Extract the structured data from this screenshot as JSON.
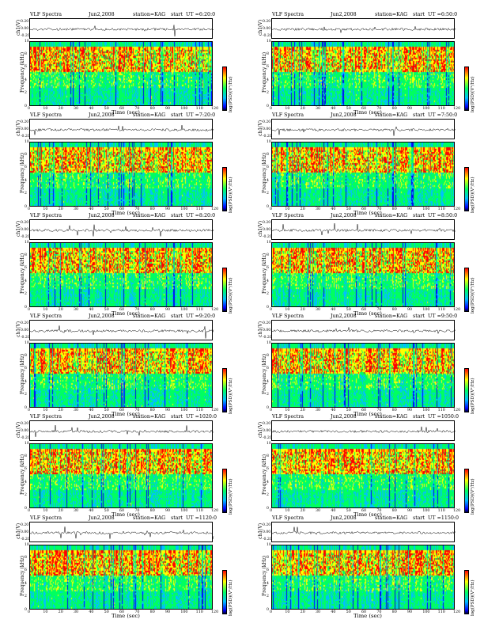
{
  "chart_data": [
    {
      "type": "heatmap",
      "header": {
        "title": "VLF Spectra",
        "date": "Jun2,2008",
        "station": "station=KAG",
        "start": "start  UT =6:20:0"
      },
      "waveform": {
        "ylabel": "ch1(V)",
        "yticks": [
          "0.20",
          "0.00",
          "-0.20"
        ],
        "ylim": [
          -0.2,
          0.2
        ]
      },
      "spectrogram": {
        "ylabel": "Frequency (kHz)",
        "yticks": [
          "10",
          "8",
          "6",
          "4",
          "2",
          "0"
        ],
        "ylim": [
          0,
          10
        ],
        "xlabel": "Time (sec)",
        "xticks": [
          "0",
          "10",
          "20",
          "30",
          "40",
          "50",
          "60",
          "70",
          "80",
          "90",
          "100",
          "110",
          "120"
        ],
        "xlim": [
          0,
          120
        ]
      },
      "colorbar": {
        "label": "log(PSD)(V²/Hz)"
      }
    },
    {
      "type": "heatmap",
      "header": {
        "title": "VLF Spectra",
        "date": "Jun2,2008",
        "station": "station=KAG",
        "start": "start  UT =6:50:0"
      },
      "waveform": {
        "ylabel": "ch1(V)",
        "yticks": [
          "0.20",
          "0.00",
          "-0.20"
        ],
        "ylim": [
          -0.2,
          0.2
        ]
      },
      "spectrogram": {
        "ylabel": "Frequency (kHz)",
        "yticks": [
          "10",
          "8",
          "6",
          "4",
          "2",
          "0"
        ],
        "ylim": [
          0,
          10
        ],
        "xlabel": "Time (sec)",
        "xticks": [
          "0",
          "10",
          "20",
          "30",
          "40",
          "50",
          "60",
          "70",
          "80",
          "90",
          "100",
          "110",
          "120"
        ],
        "xlim": [
          0,
          120
        ]
      },
      "colorbar": {
        "label": "log(PSD)(V²/Hz)"
      }
    },
    {
      "type": "heatmap",
      "header": {
        "title": "VLF Spectra",
        "date": "Jun2,2008",
        "station": "station=KAG",
        "start": "start  UT =7:20:0"
      },
      "waveform": {
        "ylabel": "ch1(V)",
        "yticks": [
          "0.20",
          "0.00",
          "-0.20"
        ],
        "ylim": [
          -0.2,
          0.2
        ]
      },
      "spectrogram": {
        "ylabel": "Frequency (kHz)",
        "yticks": [
          "10",
          "8",
          "6",
          "4",
          "2",
          "0"
        ],
        "ylim": [
          0,
          10
        ],
        "xlabel": "Time (sec)",
        "xticks": [
          "0",
          "10",
          "20",
          "30",
          "40",
          "50",
          "60",
          "70",
          "80",
          "90",
          "100",
          "110",
          "120"
        ],
        "xlim": [
          0,
          120
        ]
      },
      "colorbar": {
        "label": "log(PSD)(V²/Hz)"
      }
    },
    {
      "type": "heatmap",
      "header": {
        "title": "VLF Spectra",
        "date": "Jun2,2008",
        "station": "station=KAG",
        "start": "start  UT =7:50:0"
      },
      "waveform": {
        "ylabel": "ch1(V)",
        "yticks": [
          "0.20",
          "0.00",
          "-0.20"
        ],
        "ylim": [
          -0.2,
          0.2
        ]
      },
      "spectrogram": {
        "ylabel": "Frequency (kHz)",
        "yticks": [
          "10",
          "8",
          "6",
          "4",
          "2",
          "0"
        ],
        "ylim": [
          0,
          10
        ],
        "xlabel": "Time (sec)",
        "xticks": [
          "0",
          "10",
          "20",
          "30",
          "40",
          "50",
          "60",
          "70",
          "80",
          "90",
          "100",
          "110",
          "120"
        ],
        "xlim": [
          0,
          120
        ]
      },
      "colorbar": {
        "label": "log(PSD)(V²/Hz)"
      }
    },
    {
      "type": "heatmap",
      "header": {
        "title": "VLF Spectra",
        "date": "Jun2,2008",
        "station": "station=KAG",
        "start": "start  UT =8:20:0"
      },
      "waveform": {
        "ylabel": "ch1(V)",
        "yticks": [
          "0.20",
          "0.00",
          "-0.20"
        ],
        "ylim": [
          -0.2,
          0.2
        ]
      },
      "spectrogram": {
        "ylabel": "Frequency (kHz)",
        "yticks": [
          "10",
          "8",
          "6",
          "4",
          "2",
          "0"
        ],
        "ylim": [
          0,
          10
        ],
        "xlabel": "Time (sec)",
        "xticks": [
          "0",
          "10",
          "20",
          "30",
          "40",
          "50",
          "60",
          "70",
          "80",
          "90",
          "100",
          "110",
          "120"
        ],
        "xlim": [
          0,
          120
        ]
      },
      "colorbar": {
        "label": "log(PSD)(V²/Hz)"
      }
    },
    {
      "type": "heatmap",
      "header": {
        "title": "VLF Spectra",
        "date": "Jun2,2008",
        "station": "station=KAG",
        "start": "start  UT =8:50:0"
      },
      "waveform": {
        "ylabel": "ch1(V)",
        "yticks": [
          "0.20",
          "0.00",
          "-0.20"
        ],
        "ylim": [
          -0.2,
          0.2
        ]
      },
      "spectrogram": {
        "ylabel": "Frequency (kHz)",
        "yticks": [
          "10",
          "8",
          "6",
          "4",
          "2",
          "0"
        ],
        "ylim": [
          0,
          10
        ],
        "xlabel": "Time (sec)",
        "xticks": [
          "0",
          "10",
          "20",
          "30",
          "40",
          "50",
          "60",
          "70",
          "80",
          "90",
          "100",
          "110",
          "120"
        ],
        "xlim": [
          0,
          120
        ]
      },
      "colorbar": {
        "label": "log(PSD)(V²/Hz)"
      }
    },
    {
      "type": "heatmap",
      "header": {
        "title": "VLF Spectra",
        "date": "Jun2,2008",
        "station": "station=KAG",
        "start": "start  UT =9:20:0"
      },
      "waveform": {
        "ylabel": "ch1(V)",
        "yticks": [
          "0.20",
          "0.00",
          "-0.20"
        ],
        "ylim": [
          -0.2,
          0.2
        ]
      },
      "spectrogram": {
        "ylabel": "Frequency (kHz)",
        "yticks": [
          "10",
          "8",
          "6",
          "4",
          "2",
          "0"
        ],
        "ylim": [
          0,
          10
        ],
        "xlabel": "Time (sec)",
        "xticks": [
          "0",
          "10",
          "20",
          "30",
          "40",
          "50",
          "60",
          "70",
          "80",
          "90",
          "100",
          "110",
          "120"
        ],
        "xlim": [
          0,
          120
        ]
      },
      "colorbar": {
        "label": "log(PSD)(V²/Hz)"
      }
    },
    {
      "type": "heatmap",
      "header": {
        "title": "VLF Spectra",
        "date": "Jun2,2008",
        "station": "station=KAG",
        "start": "start  UT =9:50:0"
      },
      "waveform": {
        "ylabel": "ch1(V)",
        "yticks": [
          "0.20",
          "0.00",
          "-0.20"
        ],
        "ylim": [
          -0.2,
          0.2
        ]
      },
      "spectrogram": {
        "ylabel": "Frequency (kHz)",
        "yticks": [
          "10",
          "8",
          "6",
          "4",
          "2",
          "0"
        ],
        "ylim": [
          0,
          10
        ],
        "xlabel": "Time (sec)",
        "xticks": [
          "0",
          "10",
          "20",
          "30",
          "40",
          "50",
          "60",
          "70",
          "80",
          "90",
          "100",
          "110",
          "120"
        ],
        "xlim": [
          0,
          120
        ]
      },
      "colorbar": {
        "label": "log(PSD)(V²/Hz)"
      }
    },
    {
      "type": "heatmap",
      "header": {
        "title": "VLF Spectra",
        "date": "Jun2,2008",
        "station": "station=KAG",
        "start": "start  UT =1020:0"
      },
      "waveform": {
        "ylabel": "ch1(V)",
        "yticks": [
          "0.20",
          "0.00",
          "-0.20"
        ],
        "ylim": [
          -0.2,
          0.2
        ]
      },
      "spectrogram": {
        "ylabel": "Frequency (kHz)",
        "yticks": [
          "10",
          "8",
          "6",
          "4",
          "2",
          "0"
        ],
        "ylim": [
          0,
          10
        ],
        "xlabel": "Time (sec)",
        "xticks": [
          "0",
          "10",
          "20",
          "30",
          "40",
          "50",
          "60",
          "70",
          "80",
          "90",
          "100",
          "110",
          "120"
        ],
        "xlim": [
          0,
          120
        ]
      },
      "colorbar": {
        "label": "log(PSD)(V²/Hz)"
      }
    },
    {
      "type": "heatmap",
      "header": {
        "title": "VLF Spectra",
        "date": "Jun2,2008",
        "station": "station=KAG",
        "start": "start  UT =1050:0"
      },
      "waveform": {
        "ylabel": "ch1(V)",
        "yticks": [
          "0.20",
          "0.00",
          "-0.20"
        ],
        "ylim": [
          -0.2,
          0.2
        ]
      },
      "spectrogram": {
        "ylabel": "Frequency (kHz)",
        "yticks": [
          "10",
          "8",
          "6",
          "4",
          "2",
          "0"
        ],
        "ylim": [
          0,
          10
        ],
        "xlabel": "Time (sec)",
        "xticks": [
          "0",
          "10",
          "20",
          "30",
          "40",
          "50",
          "60",
          "70",
          "80",
          "90",
          "100",
          "110",
          "120"
        ],
        "xlim": [
          0,
          120
        ]
      },
      "colorbar": {
        "label": "log(PSD)(V²/Hz)"
      }
    },
    {
      "type": "heatmap",
      "header": {
        "title": "VLF Spectra",
        "date": "Jun2,2008",
        "station": "station=KAG",
        "start": "start  UT =1120:0"
      },
      "waveform": {
        "ylabel": "ch1(V)",
        "yticks": [
          "0.20",
          "0.00",
          "-0.20"
        ],
        "ylim": [
          -0.2,
          0.2
        ]
      },
      "spectrogram": {
        "ylabel": "Frequency (kHz)",
        "yticks": [
          "10",
          "8",
          "6",
          "4",
          "2",
          "0"
        ],
        "ylim": [
          0,
          10
        ],
        "xlabel": "Time (sec)",
        "xticks": [
          "0",
          "10",
          "20",
          "30",
          "40",
          "50",
          "60",
          "70",
          "80",
          "90",
          "100",
          "110",
          "120"
        ],
        "xlim": [
          0,
          120
        ]
      },
      "colorbar": {
        "label": "log(PSD)(V²/Hz)"
      }
    },
    {
      "type": "heatmap",
      "header": {
        "title": "VLF Spectra",
        "date": "Jun2,2008",
        "station": "station=KAG",
        "start": "start  UT =1150:0"
      },
      "waveform": {
        "ylabel": "ch1(V)",
        "yticks": [
          "0.20",
          "0.00",
          "-0.20"
        ],
        "ylim": [
          -0.2,
          0.2
        ]
      },
      "spectrogram": {
        "ylabel": "Frequency (kHz)",
        "yticks": [
          "10",
          "8",
          "6",
          "4",
          "2",
          "0"
        ],
        "ylim": [
          0,
          10
        ],
        "xlabel": "Time (sec)",
        "xticks": [
          "0",
          "10",
          "20",
          "30",
          "40",
          "50",
          "60",
          "70",
          "80",
          "90",
          "100",
          "110",
          "120"
        ],
        "xlim": [
          0,
          120
        ]
      },
      "colorbar": {
        "label": "log(PSD)(V²/Hz)"
      }
    }
  ],
  "colors": {
    "high": "#ff0000",
    "mid_high": "#ffff00",
    "mid": "#00ff60",
    "low": "#00c0ff",
    "lowest": "#0000ff"
  }
}
